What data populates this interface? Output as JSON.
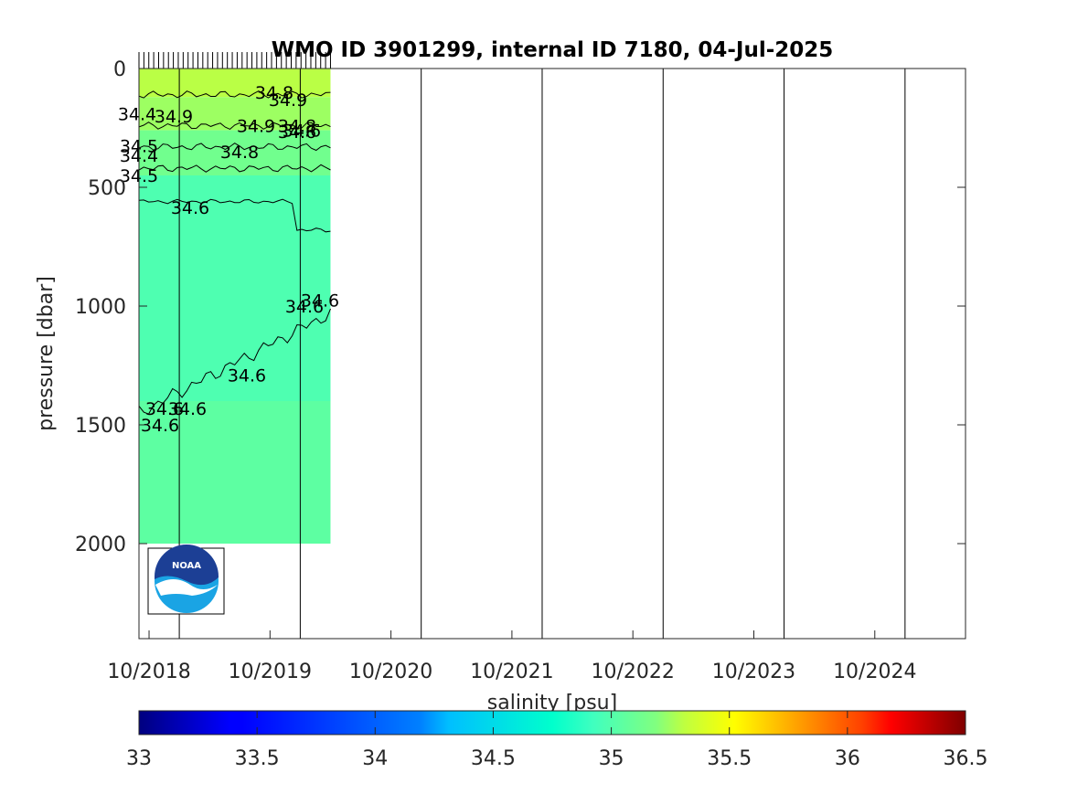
{
  "chart_data": {
    "type": "heatmap",
    "title": "WMO ID 3901299, internal ID 7180, 04-Jul-2025",
    "xlabel": "",
    "ylabel": "pressure [dbar]",
    "colorbar_label": "salinity [psu]",
    "x_tick_labels": [
      "10/2018",
      "10/2019",
      "10/2020",
      "10/2021",
      "10/2022",
      "10/2023",
      "10/2024"
    ],
    "x_range": [
      "2018-09",
      "2025-07"
    ],
    "y_ticks": [
      0,
      500,
      1000,
      1500,
      2000
    ],
    "y_range": [
      0,
      2400
    ],
    "y_reversed": true,
    "year_boundaries": [
      "2019-01-01",
      "2020-01-01",
      "2021-01-01",
      "2022-01-01",
      "2023-01-01",
      "2024-01-01",
      "2025-01-01"
    ],
    "profile_dates_start": "2018-09",
    "profile_dates_end": "2020-04",
    "colorbar": {
      "ticks": [
        33,
        33.5,
        34,
        34.5,
        35,
        35.5,
        36,
        36.5
      ],
      "range": [
        33,
        36.5
      ],
      "colormap": "jet"
    },
    "contour_levels": [
      34.4,
      34.5,
      34.6,
      34.8,
      34.9
    ],
    "contour_labels": [
      "34.6",
      "34.6",
      "34.6",
      "34.6",
      "34.6",
      "34.6",
      "34.6",
      "34.6",
      "34.6",
      "34.5",
      "34.4",
      "34.5",
      "34.4",
      "34.8",
      "34.8",
      "34.9",
      "34.9",
      "34.9",
      "34.8"
    ],
    "salinity_layers": [
      {
        "from_dbar": 0,
        "to_dbar": 120,
        "salinity": 34.95
      },
      {
        "from_dbar": 120,
        "to_dbar": 260,
        "salinity": 34.85
      },
      {
        "from_dbar": 260,
        "to_dbar": 450,
        "salinity": 34.7
      },
      {
        "from_dbar": 450,
        "to_dbar": 1400,
        "salinity": 34.58
      },
      {
        "from_dbar": 1400,
        "to_dbar": 2000,
        "salinity": 34.63
      }
    ]
  },
  "logo": {
    "text": "NOAA"
  },
  "colors": {
    "logo_blue_dark": "#1c3f95",
    "logo_blue_light": "#1aa4e4"
  }
}
